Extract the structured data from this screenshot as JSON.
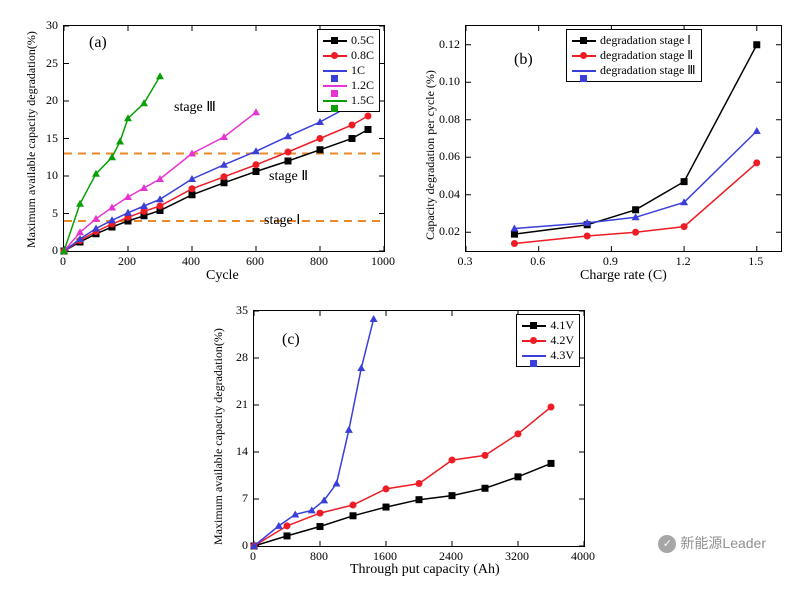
{
  "colors": {
    "black": "#000000",
    "red": "#ee1c25",
    "blue": "#3a3fd9",
    "magenta": "#e733d1",
    "green": "#0aa005",
    "orange_dash": "#ec8a2a",
    "white": "#ffffff"
  },
  "watermark": "新能源Leader",
  "panel_a": {
    "tag": "(a)",
    "xlabel": "Cycle",
    "ylabel": "Maximum available capacity degradation(%)",
    "xlim": [
      0,
      1000
    ],
    "xtick_step": 200,
    "ylim": [
      0,
      30
    ],
    "ytick_step": 5,
    "stage_lines": {
      "y1": 4,
      "y2": 13
    },
    "annots": {
      "s1": "stage Ⅰ",
      "s2": "stage Ⅱ",
      "s3": "stage Ⅲ"
    },
    "legend_title": null,
    "series": [
      {
        "label": "0.5C",
        "color": "#000000",
        "marker": "sq",
        "pts": [
          [
            0,
            0
          ],
          [
            50,
            1.2
          ],
          [
            100,
            2.3
          ],
          [
            150,
            3.2
          ],
          [
            200,
            4.0
          ],
          [
            250,
            4.7
          ],
          [
            300,
            5.4
          ],
          [
            400,
            7.5
          ],
          [
            500,
            9.1
          ],
          [
            600,
            10.6
          ],
          [
            700,
            12.0
          ],
          [
            800,
            13.5
          ],
          [
            900,
            15.0
          ],
          [
            950,
            16.2
          ]
        ]
      },
      {
        "label": "0.8C",
        "color": "#ee1c25",
        "marker": "ci",
        "pts": [
          [
            0,
            0
          ],
          [
            50,
            1.4
          ],
          [
            100,
            2.6
          ],
          [
            150,
            3.6
          ],
          [
            200,
            4.5
          ],
          [
            250,
            5.3
          ],
          [
            300,
            6.0
          ],
          [
            400,
            8.3
          ],
          [
            500,
            9.9
          ],
          [
            600,
            11.5
          ],
          [
            700,
            13.2
          ],
          [
            800,
            15.0
          ],
          [
            900,
            16.8
          ],
          [
            950,
            18.0
          ]
        ]
      },
      {
        "label": "1C",
        "color": "#3a3fd9",
        "marker": "tri",
        "pts": [
          [
            0,
            0
          ],
          [
            50,
            1.6
          ],
          [
            100,
            3.0
          ],
          [
            150,
            4.1
          ],
          [
            200,
            5.1
          ],
          [
            250,
            6.0
          ],
          [
            300,
            6.9
          ],
          [
            400,
            9.6
          ],
          [
            500,
            11.5
          ],
          [
            600,
            13.3
          ],
          [
            700,
            15.3
          ],
          [
            800,
            17.2
          ],
          [
            900,
            19.5
          ],
          [
            950,
            20.8
          ]
        ]
      },
      {
        "label": "1.2C",
        "color": "#e733d1",
        "marker": "tri",
        "pts": [
          [
            0,
            0
          ],
          [
            50,
            2.5
          ],
          [
            100,
            4.3
          ],
          [
            150,
            5.8
          ],
          [
            200,
            7.2
          ],
          [
            250,
            8.4
          ],
          [
            300,
            9.6
          ],
          [
            400,
            13.0
          ],
          [
            500,
            15.2
          ],
          [
            600,
            18.5
          ]
        ]
      },
      {
        "label": "1.5C",
        "color": "#0aa005",
        "marker": "tri",
        "pts": [
          [
            0,
            0
          ],
          [
            50,
            6.3
          ],
          [
            100,
            10.3
          ],
          [
            150,
            12.5
          ],
          [
            175,
            14.6
          ],
          [
            200,
            17.7
          ],
          [
            250,
            19.7
          ],
          [
            300,
            23.3
          ]
        ]
      }
    ]
  },
  "panel_b": {
    "tag": "(b)",
    "xlabel": "Charge rate (C)",
    "ylabel": "Capacity degradation per cycle (%)",
    "xlim": [
      0.3,
      1.6
    ],
    "xticks": [
      0.3,
      0.6,
      0.9,
      1.2,
      1.5
    ],
    "ylim": [
      0.01,
      0.13
    ],
    "yticks": [
      0.02,
      0.04,
      0.06,
      0.08,
      0.1,
      0.12
    ],
    "series": [
      {
        "label": "degradation stage Ⅰ",
        "color": "#000000",
        "marker": "sq",
        "pts": [
          [
            0.5,
            0.019
          ],
          [
            0.8,
            0.024
          ],
          [
            1.0,
            0.032
          ],
          [
            1.2,
            0.047
          ],
          [
            1.5,
            0.12
          ]
        ]
      },
      {
        "label": "degradation stage Ⅱ",
        "color": "#ee1c25",
        "marker": "ci",
        "pts": [
          [
            0.5,
            0.014
          ],
          [
            0.8,
            0.018
          ],
          [
            1.0,
            0.02
          ],
          [
            1.2,
            0.023
          ],
          [
            1.5,
            0.057
          ]
        ]
      },
      {
        "label": "degradation stage Ⅲ",
        "color": "#3a3fd9",
        "marker": "tri",
        "pts": [
          [
            0.5,
            0.022
          ],
          [
            0.8,
            0.025
          ],
          [
            1.0,
            0.028
          ],
          [
            1.2,
            0.036
          ],
          [
            1.5,
            0.074
          ]
        ]
      }
    ]
  },
  "panel_c": {
    "tag": "(c)",
    "xlabel": "Through put capacity (Ah)",
    "ylabel": "Maximum available capacity degradation(%)",
    "xlim": [
      0,
      4000
    ],
    "xtick_step": 800,
    "ylim": [
      0,
      35
    ],
    "ytick_step": 7,
    "series": [
      {
        "label": "4.1V",
        "color": "#000000",
        "marker": "sq",
        "pts": [
          [
            0,
            0
          ],
          [
            400,
            1.5
          ],
          [
            800,
            2.9
          ],
          [
            1200,
            4.5
          ],
          [
            1600,
            5.8
          ],
          [
            2000,
            6.9
          ],
          [
            2400,
            7.5
          ],
          [
            2800,
            8.6
          ],
          [
            3200,
            10.3
          ],
          [
            3600,
            12.3
          ]
        ]
      },
      {
        "label": "4.2V",
        "color": "#ee1c25",
        "marker": "ci",
        "pts": [
          [
            0,
            0
          ],
          [
            400,
            3.0
          ],
          [
            800,
            4.9
          ],
          [
            1200,
            6.1
          ],
          [
            1600,
            8.5
          ],
          [
            2000,
            9.3
          ],
          [
            2400,
            12.8
          ],
          [
            2800,
            13.5
          ],
          [
            3200,
            16.7
          ],
          [
            3600,
            20.7
          ]
        ]
      },
      {
        "label": "4.3V",
        "color": "#3a3fd9",
        "marker": "tri",
        "pts": [
          [
            0,
            0
          ],
          [
            300,
            3.0
          ],
          [
            500,
            4.7
          ],
          [
            700,
            5.3
          ],
          [
            850,
            6.8
          ],
          [
            1000,
            9.3
          ],
          [
            1150,
            17.3
          ],
          [
            1300,
            26.5
          ],
          [
            1450,
            33.8
          ]
        ]
      }
    ]
  }
}
